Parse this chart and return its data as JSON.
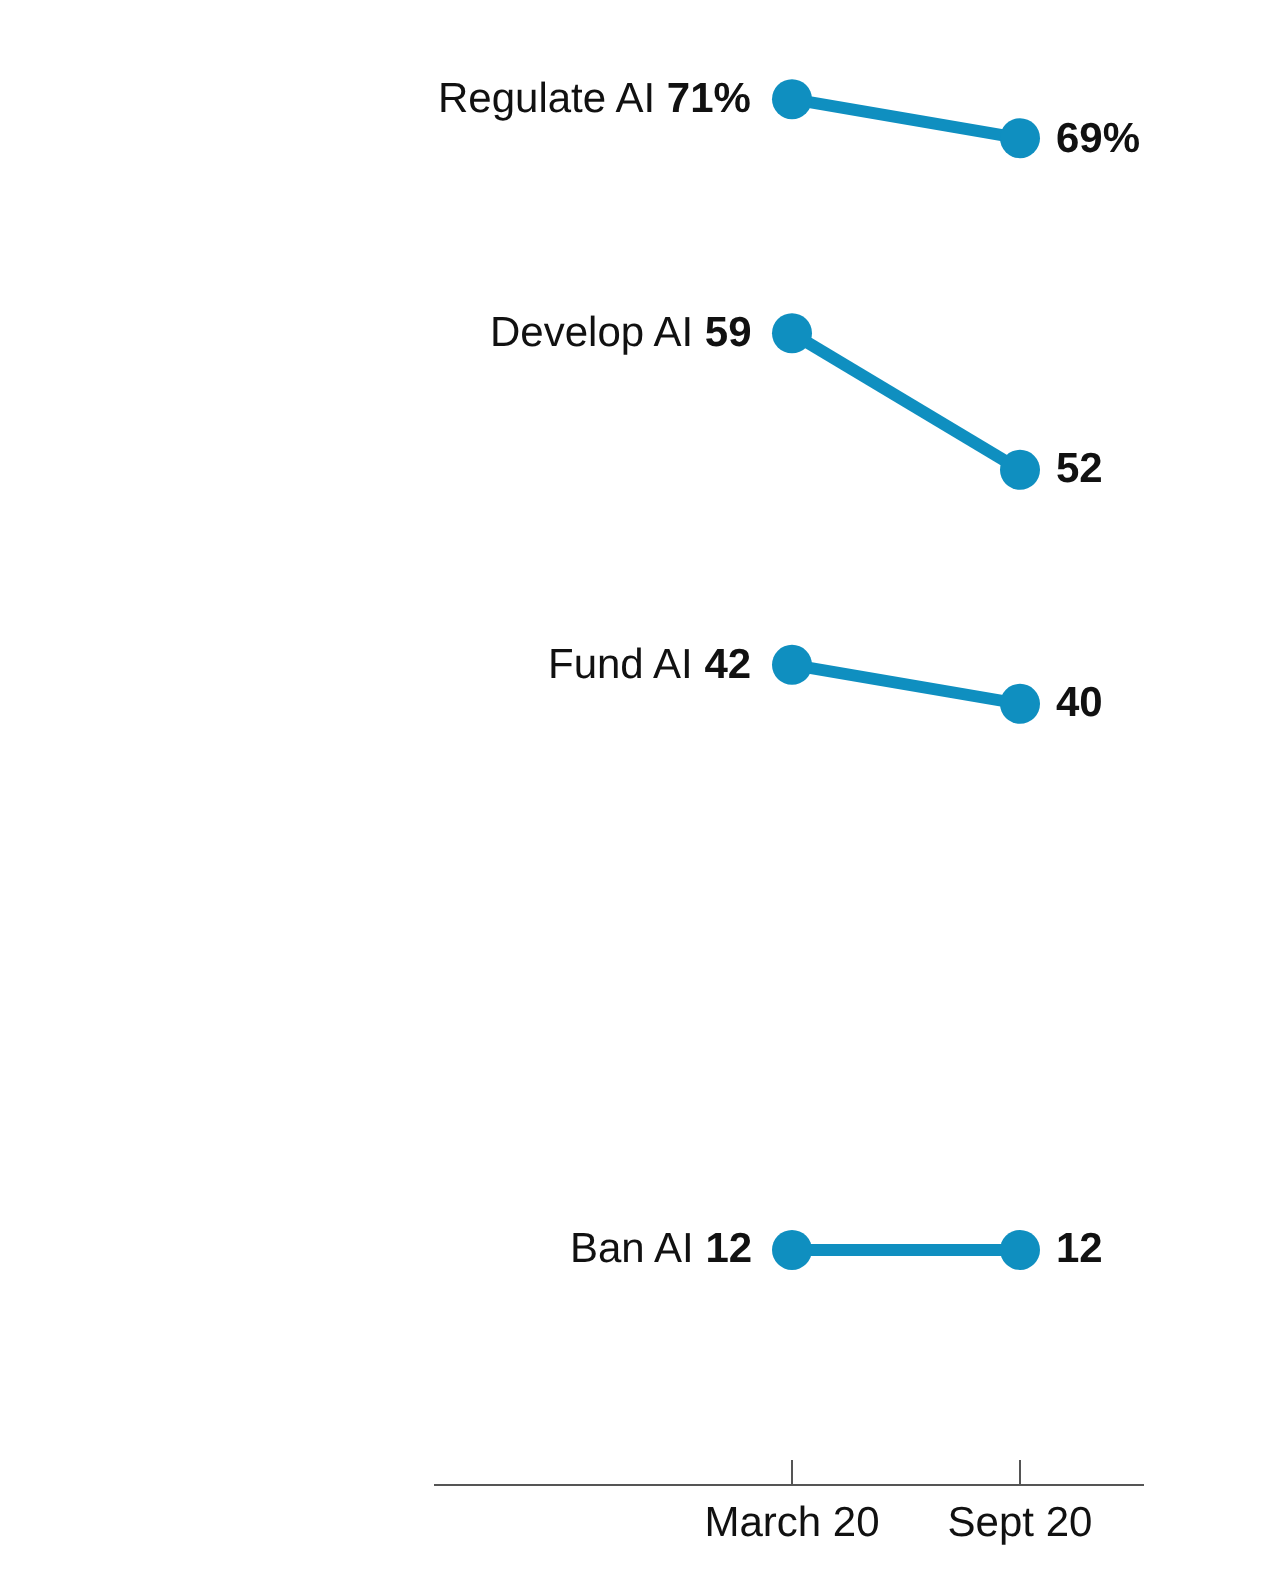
{
  "chart_data": {
    "type": "line",
    "categories": [
      "March 20",
      "Sept 20"
    ],
    "tick_labels": "x",
    "legend": false,
    "marker": "circle",
    "line_style": "solid",
    "series": [
      {
        "name": "Regulate AI",
        "color": "#0f8fc0",
        "values": [
          71,
          69
        ],
        "value_labels": [
          "71%",
          "69%"
        ]
      },
      {
        "name": "Develop AI",
        "color": "#0f8fc0",
        "values": [
          59,
          52
        ],
        "value_labels": [
          "59",
          "52"
        ]
      },
      {
        "name": "Fund AI",
        "color": "#0f8fc0",
        "values": [
          42,
          40
        ],
        "value_labels": [
          "42",
          "40"
        ]
      },
      {
        "name": "Ban AI",
        "color": "#0f8fc0",
        "values": [
          12,
          12
        ],
        "value_labels": [
          "12",
          "12"
        ]
      }
    ]
  }
}
